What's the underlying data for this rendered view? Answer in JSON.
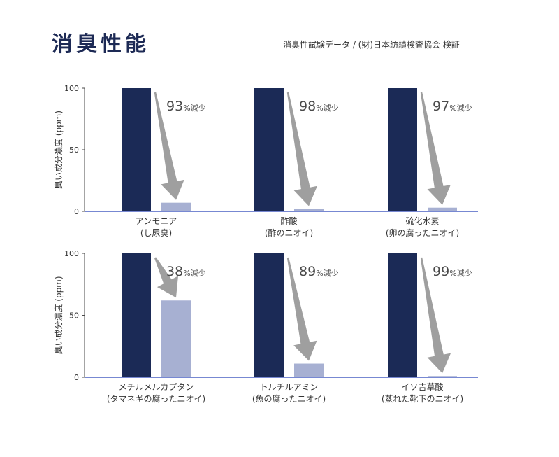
{
  "title": "消臭性能",
  "source": "消臭性試験データ / (財)日本紡績検査協会 検証",
  "chart_data": {
    "type": "bar",
    "ylabel": "臭い成分濃度 (ppm)",
    "ylim": [
      0,
      100
    ],
    "yticks": [
      0,
      50,
      100
    ],
    "colors": {
      "before": "#1b2a56",
      "after": "#a7b0d2",
      "arrow": "#8e8e8e",
      "axis": "#4a4a4a",
      "baseline": "#4a61c4"
    },
    "reduction_suffix": "%減少",
    "panels": [
      {
        "name": "アンモニア",
        "sub": "(し尿臭)",
        "before": 100,
        "after": 7,
        "reduction": "93"
      },
      {
        "name": "酢酸",
        "sub": "(酢のニオイ)",
        "before": 100,
        "after": 2,
        "reduction": "98"
      },
      {
        "name": "硫化水素",
        "sub": "(卵の腐ったニオイ)",
        "before": 100,
        "after": 3,
        "reduction": "97"
      },
      {
        "name": "メチルメルカプタン",
        "sub": "(タマネギの腐ったニオイ)",
        "before": 100,
        "after": 62,
        "reduction": "38"
      },
      {
        "name": "トルチルアミン",
        "sub": "(魚の腐ったニオイ)",
        "before": 100,
        "after": 11,
        "reduction": "89"
      },
      {
        "name": "イソ吉草酸",
        "sub": "(蒸れた靴下のニオイ)",
        "before": 100,
        "after": 1,
        "reduction": "99"
      }
    ]
  }
}
